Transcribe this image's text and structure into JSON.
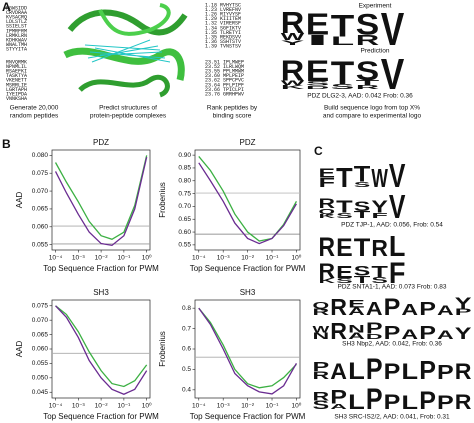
{
  "panel_labels": [
    "A",
    "B",
    "C"
  ],
  "panel_a": {
    "peptides": [
      [
        "RGWSIDD",
        "CRVDRAA",
        "KVSACRQ",
        "LDLSTLZ",
        "SSIELST",
        "IPMRFRM",
        "LRMKLRN",
        "KDHKWAV",
        "WNALTMH",
        "STYYITA"
      ],
      [
        "RNVQRMK",
        "NPNMLIL",
        "RSAEFKI",
        "TASKTYA",
        "VKENETT",
        "MSRRLIE",
        "LGRTAPH",
        "IYEIPDA",
        "VNNKSHA"
      ]
    ],
    "ranked": [
      [
        "1.18  RVHYTSC",
        "1.23  LVREFNV",
        "1.26  RIYVYSF",
        "1.29  KIIITEM",
        "1.32  VIRERSF",
        "1.34  SGFIKTV",
        "1.35  TLRETYI",
        "1.35  REKDSVV",
        "1.36  SSHTSTV",
        "1.39  TVNSTSV"
      ],
      [
        "23.51  IPLMWEP",
        "23.52  ILRLWQM",
        "23.55  PPLMMWM",
        "23.60  MPLPEIP",
        "23.62  SPPCPVC",
        "23.64  PFLPIPF",
        "23.66  TPICLPI",
        "23.76  GRRHPWV"
      ]
    ],
    "steps": [
      [
        "Generate 20,000",
        "random peptides"
      ],
      [
        "Predict structures of",
        "protein-peptide complexes"
      ],
      [
        "Rank peptides by",
        "binding score"
      ],
      [
        "Build sequence logo from top X%",
        "and compare to experimental logo"
      ]
    ],
    "experiment_label": "Experiment",
    "prediction_label": "Prediction",
    "experiment": [
      [
        [
          "R",
          0.62
        ],
        [
          "W",
          0.2
        ],
        [
          "Y",
          0.14
        ]
      ],
      [
        [
          "E",
          0.62
        ],
        [
          "I",
          0.3
        ]
      ],
      [
        [
          "T",
          0.65
        ],
        [
          "L",
          0.25
        ]
      ],
      [
        [
          "S",
          0.6
        ],
        [
          "R",
          0.3
        ]
      ],
      [
        [
          "V",
          0.95
        ]
      ]
    ],
    "prediction": [
      [
        [
          "R",
          0.62
        ],
        [
          "W",
          0.14
        ],
        [
          "K",
          0.12
        ]
      ],
      [
        [
          "E",
          0.65
        ],
        [
          "S",
          0.14
        ],
        [
          "D",
          0.1
        ]
      ],
      [
        [
          "T",
          0.7
        ],
        [
          "S",
          0.15
        ]
      ],
      [
        [
          "S",
          0.58
        ],
        [
          "T",
          0.16
        ],
        [
          "R",
          0.12
        ]
      ],
      [
        [
          "V",
          0.95
        ]
      ]
    ],
    "caption": "PDZ DLG2-3, AAD: 0.042 Frob: 0.36"
  },
  "chart_data": [
    {
      "type": "line",
      "title": "PDZ",
      "xlabel": "Top Sequence Fraction for PWM",
      "ylabel": "AAD",
      "xscale": "log",
      "x": [
        0.0001,
        0.0003,
        0.001,
        0.003,
        0.01,
        0.03,
        0.1,
        0.3,
        1
      ],
      "xlim": [
        7e-05,
        1.4
      ],
      "xticks": [
        {
          "value": 0.0001,
          "label": "10⁻⁴"
        },
        {
          "value": 0.001,
          "label": "10⁻³"
        },
        {
          "value": 0.01,
          "label": "10⁻²"
        },
        {
          "value": 0.1,
          "label": "10⁻¹"
        },
        {
          "value": 1,
          "label": "10⁰"
        }
      ],
      "ylim": [
        0.0535,
        0.0815
      ],
      "yticks": [
        0.055,
        {
          "value": 0.06,
          "label": "0.060"
        },
        0.065,
        {
          "value": 0.07,
          "label": "0.070"
        },
        0.075,
        {
          "value": 0.08,
          "label": "0.080"
        }
      ],
      "hlines": [
        {
          "value": 0.0602,
          "color": "#aaaaaa"
        },
        {
          "value": 0.0552,
          "color": "#999999"
        }
      ],
      "series": [
        {
          "color": "#3cb043",
          "values": [
            0.078,
            0.0725,
            0.067,
            0.0615,
            0.0575,
            0.0565,
            0.0585,
            0.066,
            0.08
          ]
        },
        {
          "color": "#6a2c91",
          "values": [
            0.0755,
            0.0695,
            0.0635,
            0.0585,
            0.0553,
            0.0548,
            0.0575,
            0.065,
            0.0795
          ]
        }
      ]
    },
    {
      "type": "line",
      "title": "PDZ",
      "xlabel": "Top Sequence Fraction for PWM",
      "ylabel": "Frobenius",
      "xscale": "log",
      "x": [
        0.0001,
        0.0003,
        0.001,
        0.003,
        0.01,
        0.03,
        0.1,
        0.3,
        1
      ],
      "xlim": [
        7e-05,
        1.4
      ],
      "xticks": [
        {
          "value": 0.0001,
          "label": "10⁻⁴"
        },
        {
          "value": 0.001,
          "label": "10⁻³"
        },
        {
          "value": 0.01,
          "label": "10⁻²"
        },
        {
          "value": 0.1,
          "label": "10⁻¹"
        },
        {
          "value": 1,
          "label": "10⁰"
        }
      ],
      "ylim": [
        0.53,
        0.92
      ],
      "yticks": [
        0.55,
        {
          "value": 0.6,
          "label": "0.60"
        },
        0.65,
        {
          "value": 0.7,
          "label": "0.70"
        },
        0.75,
        {
          "value": 0.8,
          "label": "0.80"
        },
        0.85,
        {
          "value": 0.9,
          "label": "0.90"
        }
      ],
      "hlines": [
        {
          "value": 0.752,
          "color": "#bbbbbb"
        },
        {
          "value": 0.592,
          "color": "#777777"
        }
      ],
      "series": [
        {
          "color": "#3cb043",
          "values": [
            0.895,
            0.84,
            0.76,
            0.67,
            0.6,
            0.565,
            0.575,
            0.63,
            0.72
          ]
        },
        {
          "color": "#6a2c91",
          "values": [
            0.87,
            0.8,
            0.72,
            0.635,
            0.575,
            0.555,
            0.575,
            0.625,
            0.71
          ]
        }
      ]
    },
    {
      "type": "line",
      "title": "SH3",
      "xlabel": "Top Sequence Fraction for PWM",
      "ylabel": "AAD",
      "xscale": "log",
      "x": [
        0.0001,
        0.0003,
        0.001,
        0.003,
        0.01,
        0.03,
        0.1,
        0.3,
        1
      ],
      "xlim": [
        7e-05,
        1.4
      ],
      "xticks": [
        {
          "value": 0.0001,
          "label": "10⁻⁴"
        },
        {
          "value": 0.001,
          "label": "10⁻³"
        },
        {
          "value": 0.01,
          "label": "10⁻²"
        },
        {
          "value": 0.1,
          "label": "10⁻¹"
        },
        {
          "value": 1,
          "label": "10⁰"
        }
      ],
      "ylim": [
        0.043,
        0.077
      ],
      "yticks": [
        0.045,
        {
          "value": 0.05,
          "label": "0.050"
        },
        0.055,
        {
          "value": 0.06,
          "label": "0.060"
        },
        0.065,
        {
          "value": 0.07,
          "label": "0.070"
        },
        0.075
      ],
      "hlines": [
        {
          "value": 0.0585,
          "color": "#aaaaaa"
        }
      ],
      "series": [
        {
          "color": "#3cb043",
          "values": [
            0.075,
            0.072,
            0.066,
            0.059,
            0.0525,
            0.048,
            0.047,
            0.049,
            0.0545
          ]
        },
        {
          "color": "#6a2c91",
          "values": [
            0.075,
            0.071,
            0.064,
            0.056,
            0.05,
            0.046,
            0.0443,
            0.046,
            0.0525
          ]
        }
      ]
    },
    {
      "type": "line",
      "title": "SH3",
      "xlabel": "Top Sequence Fraction for PWM",
      "ylabel": "Frobenius",
      "xscale": "log",
      "x": [
        0.0001,
        0.0003,
        0.001,
        0.003,
        0.01,
        0.03,
        0.1,
        0.3,
        1
      ],
      "xlim": [
        7e-05,
        1.4
      ],
      "xticks": [
        {
          "value": 0.0001,
          "label": "10⁻⁴"
        },
        {
          "value": 0.001,
          "label": "10⁻³"
        },
        {
          "value": 0.01,
          "label": "10⁻²"
        },
        {
          "value": 0.1,
          "label": "10⁻¹"
        },
        {
          "value": 1,
          "label": "10⁰"
        }
      ],
      "ylim": [
        0.36,
        0.84
      ],
      "yticks": [
        0.4,
        0.5,
        0.6,
        0.7,
        0.8
      ],
      "hlines": [
        {
          "value": 0.56,
          "color": "#aaaaaa"
        }
      ],
      "series": [
        {
          "color": "#3cb043",
          "values": [
            0.8,
            0.73,
            0.62,
            0.5,
            0.43,
            0.41,
            0.42,
            0.46,
            0.525
          ]
        },
        {
          "color": "#6a2c91",
          "values": [
            0.8,
            0.72,
            0.6,
            0.48,
            0.42,
            0.39,
            0.38,
            0.42,
            0.53
          ]
        }
      ]
    }
  ],
  "panel_c": [
    {
      "experiment": [
        [
          [
            "E",
            0.35
          ],
          [
            "F",
            0.35
          ]
        ],
        [
          [
            "T",
            0.75
          ]
        ],
        [
          [
            "T",
            0.6
          ],
          [
            "S",
            0.2
          ]
        ],
        [
          [
            "W",
            0.7
          ]
        ],
        [
          [
            "V",
            0.9
          ]
        ]
      ],
      "prediction": [
        [
          [
            "R",
            0.35
          ],
          [
            "Q",
            0.2
          ],
          [
            "K",
            0.15
          ]
        ],
        [
          [
            "T",
            0.45
          ],
          [
            "S",
            0.2
          ]
        ],
        [
          [
            "S",
            0.35
          ],
          [
            "T",
            0.25
          ]
        ],
        [
          [
            "Y",
            0.45
          ],
          [
            "F",
            0.2
          ]
        ],
        [
          [
            "V",
            0.85
          ]
        ]
      ],
      "caption": "PDZ TJP-1, AAD: 0.056, Frob: 0.54"
    },
    {
      "experiment": [
        [
          [
            "R",
            0.8
          ]
        ],
        [
          [
            "E",
            0.75
          ]
        ],
        [
          [
            "T",
            0.75
          ]
        ],
        [
          [
            "R",
            0.7
          ]
        ],
        [
          [
            "L",
            0.85
          ]
        ]
      ],
      "prediction": [
        [
          [
            "R",
            0.6
          ],
          [
            "K",
            0.2
          ]
        ],
        [
          [
            "E",
            0.5
          ],
          [
            "S",
            0.2
          ]
        ],
        [
          [
            "S",
            0.4
          ],
          [
            "T",
            0.3
          ]
        ],
        [
          [
            "T",
            0.45
          ],
          [
            "S",
            0.25
          ]
        ],
        [
          [
            "F",
            0.85
          ]
        ]
      ],
      "caption": "PDZ SNTA1-1, AAD: 0.073 Frob: 0.83"
    },
    {
      "experiment": [
        [
          [
            "Q",
            0.3
          ],
          [
            "R",
            0.3
          ]
        ],
        [
          [
            "R",
            0.75
          ]
        ],
        [
          [
            "E",
            0.35
          ],
          [
            "A",
            0.35
          ]
        ],
        [
          [
            "A",
            0.6
          ]
        ],
        [
          [
            "P",
            0.8
          ]
        ],
        [
          [
            "A",
            0.5
          ]
        ],
        [
          [
            "P",
            0.6
          ]
        ],
        [
          [
            "A",
            0.45
          ]
        ],
        [
          [
            "Y",
            0.5
          ],
          [
            "P",
            0.3
          ]
        ]
      ],
      "prediction": [
        [
          [
            "W",
            0.3
          ],
          [
            "N",
            0.3
          ]
        ],
        [
          [
            "R",
            0.75
          ]
        ],
        [
          [
            "N",
            0.35
          ],
          [
            "A",
            0.3
          ]
        ],
        [
          [
            "P",
            0.5
          ],
          [
            "D",
            0.25
          ]
        ],
        [
          [
            "P",
            0.6
          ]
        ],
        [
          [
            "A",
            0.45
          ]
        ],
        [
          [
            "P",
            0.6
          ]
        ],
        [
          [
            "A",
            0.4
          ]
        ],
        [
          [
            "Y",
            0.55
          ]
        ]
      ],
      "caption": "SH3 Nbp2, AAD: 0.042, Frob: 0.36"
    },
    {
      "experiment": [
        [
          [
            "P",
            0.35
          ],
          [
            "R",
            0.3
          ]
        ],
        [
          [
            "A",
            0.6
          ]
        ],
        [
          [
            "L",
            0.65
          ]
        ],
        [
          [
            "P",
            0.8
          ]
        ],
        [
          [
            "P",
            0.6
          ]
        ],
        [
          [
            "L",
            0.6
          ]
        ],
        [
          [
            "P",
            0.7
          ]
        ],
        [
          [
            "P",
            0.55
          ]
        ],
        [
          [
            "R",
            0.6
          ]
        ]
      ],
      "prediction": [
        [
          [
            "R",
            0.3
          ],
          [
            "S",
            0.3
          ]
        ],
        [
          [
            "P",
            0.5
          ],
          [
            "A",
            0.2
          ]
        ],
        [
          [
            "L",
            0.55
          ]
        ],
        [
          [
            "P",
            0.75
          ]
        ],
        [
          [
            "P",
            0.55
          ]
        ],
        [
          [
            "L",
            0.5
          ]
        ],
        [
          [
            "P",
            0.65
          ]
        ],
        [
          [
            "P",
            0.5
          ]
        ],
        [
          [
            "R",
            0.55
          ]
        ]
      ],
      "caption": "SH3 SRC-IS2/2, AAD: 0.041, Frob: 0.31"
    }
  ],
  "letter_colors": {
    "R": "#1f3fd6",
    "K": "#1f3fd6",
    "H": "#1f3fd6",
    "D": "#d62020",
    "E": "#d62020",
    "S": "#22a02a",
    "T": "#22a02a",
    "G": "#22a02a",
    "Y": "#22a02a",
    "C": "#22a02a",
    "N": "#8a2be2",
    "Q": "#8a2be2",
    "A": "#111111",
    "V": "#111111",
    "L": "#111111",
    "I": "#111111",
    "P": "#111111",
    "W": "#111111",
    "F": "#111111",
    "M": "#111111"
  }
}
